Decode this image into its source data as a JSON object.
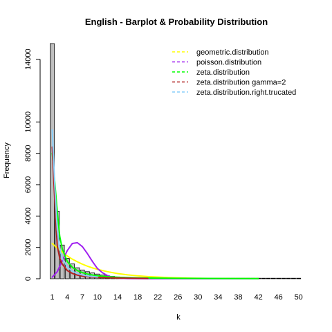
{
  "chart_data": {
    "type": "bar",
    "title": "English - Barplot & Probability Distribution",
    "xlabel": "k",
    "ylabel": "Frequency",
    "ylim": [
      0,
      15000
    ],
    "grid": false,
    "legend_position": "top-right",
    "y_ticks": [
      0,
      2000,
      4000,
      6000,
      8000,
      10000,
      14000
    ],
    "x_ticks": [
      1,
      4,
      7,
      10,
      14,
      18,
      22,
      26,
      30,
      34,
      38,
      42,
      46,
      50
    ],
    "bar_color": "#bebebe",
    "bars": {
      "k": [
        1,
        2,
        3,
        4,
        5,
        6,
        7,
        8,
        9,
        10,
        11,
        12,
        13,
        14,
        15,
        16,
        17,
        18,
        19,
        20,
        21,
        22,
        23,
        24,
        25,
        26,
        27,
        28,
        29,
        30,
        31,
        32,
        33,
        34,
        35,
        36,
        37,
        38,
        39,
        40,
        41,
        42,
        43,
        44,
        45,
        46,
        47,
        48,
        49,
        50
      ],
      "values": [
        15000,
        4300,
        2150,
        1300,
        950,
        700,
        560,
        450,
        370,
        300,
        240,
        190,
        150,
        120,
        100,
        80,
        70,
        60,
        50,
        45,
        40,
        35,
        30,
        28,
        25,
        22,
        20,
        18,
        16,
        14,
        12,
        11,
        10,
        9,
        8,
        8,
        7,
        7,
        6,
        6,
        5,
        5,
        5,
        5,
        5,
        5,
        5,
        5,
        5,
        5
      ]
    },
    "series": [
      {
        "name": "geometric.distribution",
        "color": "#ffff00",
        "x": [
          1,
          2,
          3,
          4,
          5,
          6,
          7,
          8,
          9,
          10,
          12,
          14,
          16,
          18,
          20,
          24,
          28,
          32,
          36,
          40,
          42
        ],
        "values": [
          2250,
          1950,
          1700,
          1450,
          1250,
          1080,
          930,
          800,
          690,
          600,
          450,
          330,
          250,
          185,
          140,
          75,
          40,
          22,
          12,
          7,
          5
        ]
      },
      {
        "name": "poisson.distribution",
        "color": "#a020f0",
        "x": [
          1,
          2,
          3,
          4,
          5,
          6,
          7,
          8,
          9,
          10,
          11,
          12,
          13,
          14,
          16,
          20,
          30,
          42
        ],
        "values": [
          100,
          450,
          1150,
          1800,
          2250,
          2300,
          2050,
          1600,
          1100,
          650,
          380,
          200,
          90,
          40,
          10,
          0,
          0,
          0
        ]
      },
      {
        "name": "zeta.distribution",
        "color": "#00ff00",
        "x": [
          1,
          1.5,
          2,
          2.5,
          3,
          4,
          5,
          6,
          7,
          8,
          9,
          10,
          12,
          14,
          18,
          22,
          26,
          30,
          35,
          42
        ],
        "values": [
          8000,
          6200,
          4300,
          2700,
          1900,
          1100,
          730,
          520,
          390,
          300,
          240,
          190,
          130,
          95,
          55,
          38,
          27,
          20,
          14,
          10
        ]
      },
      {
        "name": "zeta.distribution gamma=2",
        "color": "#b22222",
        "x": [
          1,
          1.5,
          2,
          2.5,
          3,
          4,
          5,
          6,
          7,
          8,
          10,
          14,
          20
        ],
        "values": [
          8400,
          5000,
          2100,
          1300,
          930,
          520,
          340,
          230,
          170,
          130,
          84,
          43,
          21
        ]
      },
      {
        "name": "zeta.distribution.right.trucated",
        "color": "#87cefa",
        "x": [
          1,
          1.5,
          2,
          2.5,
          3,
          4,
          5,
          6,
          7,
          8,
          10
        ],
        "values": [
          9500,
          6000,
          3100,
          1900,
          1300,
          750,
          480,
          330,
          240,
          180,
          110
        ]
      }
    ]
  }
}
